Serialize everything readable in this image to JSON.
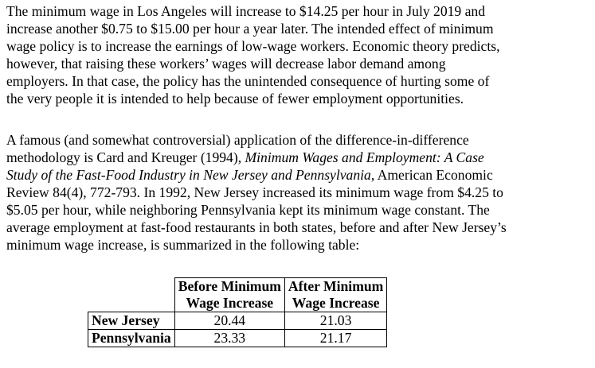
{
  "paragraphs": [
    [
      [
        "The minimum wage in Los Angeles will increase to $14.25 per hour in July 2019 and"
      ],
      [
        "increase another $0.75 to $15.00 per hour a year later.  The intended effect of minimum"
      ],
      [
        "wage policy is to increase the earnings of low-wage workers.  Economic theory predicts,"
      ],
      [
        "however, that raising these workers’ wages will decrease labor demand among"
      ],
      [
        "employers.  In that case, the policy has the unintended consequence of hurting some of"
      ],
      [
        "the very people it is intended to help because of fewer employment opportunities."
      ]
    ],
    [
      [
        "A famous (and somewhat controversial) application of the difference-in-difference"
      ],
      [
        "methodology is Card and Kreuger (1994), ",
        {
          "italic": "Minimum Wages and Employment: A Case"
        }
      ],
      [
        {
          "italic": "Study of the Fast-Food Industry in New Jersey and Pennsylvania"
        },
        ", American Economic"
      ],
      [
        "Review 84(4), 772-793.  In 1992, New Jersey increased its minimum wage from $4.25 to"
      ],
      [
        "$5.05 per hour, while neighboring Pennsylvania kept its minimum wage constant.  The"
      ],
      [
        "average employment at fast-food restaurants in both states, before and after New Jersey’s"
      ],
      [
        "minimum wage increase, is summarized in the following table:"
      ]
    ]
  ],
  "table": {
    "header": [
      [
        "Before Minimum",
        "Wage Increase"
      ],
      [
        "After Minimum",
        "Wage Increase"
      ]
    ],
    "rows": [
      [
        "New Jersey",
        "20.44",
        "21.03"
      ],
      [
        "Pennsylvania",
        "23.33",
        "21.17"
      ]
    ]
  }
}
